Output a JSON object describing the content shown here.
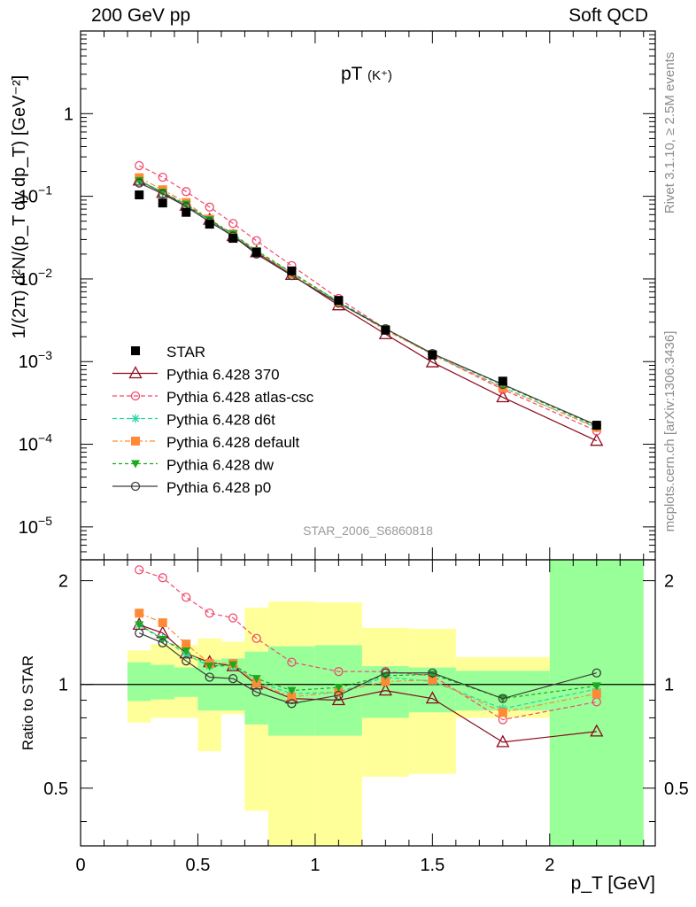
{
  "header": {
    "left": "200 GeV pp",
    "right": "Soft QCD"
  },
  "side_labels": {
    "rivet": "Rivet 3.1.10, ≥ 2.5M events",
    "mcplots": "mcplots.cern.ch [arXiv:1306.3436]"
  },
  "chart_data": [
    {
      "type": "scatter",
      "title_main": "pT",
      "title_sub": "(K⁺)",
      "watermark": "STAR_2006_S6860818",
      "ylabel": "1/(2π) d²N/(p_T dy dp_T) [GeV⁻²]",
      "yscale": "log",
      "ylim": [
        4e-06,
        10
      ],
      "xlim": [
        0,
        2.45
      ],
      "y_ticks": [
        1,
        0.1,
        0.01,
        0.001,
        0.0001,
        1e-05
      ],
      "y_tick_labels": [
        {
          "base": "1",
          "exp": ""
        },
        {
          "base": "10",
          "exp": "−1"
        },
        {
          "base": "10",
          "exp": "−2"
        },
        {
          "base": "10",
          "exp": "−3"
        },
        {
          "base": "10",
          "exp": "−4"
        },
        {
          "base": "10",
          "exp": "−5"
        }
      ],
      "legend_position": "lower-left",
      "data": {
        "name": "STAR",
        "color": "#000000",
        "x": [
          0.25,
          0.35,
          0.45,
          0.55,
          0.65,
          0.75,
          0.9,
          1.1,
          1.3,
          1.5,
          1.8,
          2.2
        ],
        "y": [
          0.104,
          0.083,
          0.064,
          0.046,
          0.031,
          0.021,
          0.0125,
          0.0055,
          0.0024,
          0.0012,
          0.00058,
          0.00017
        ]
      },
      "series": [
        {
          "name": "Pythia 6.428 370",
          "color": "#8b0a1e",
          "dash": "",
          "marker": "triangle-open",
          "x": [
            0.25,
            0.35,
            0.45,
            0.55,
            0.65,
            0.75,
            0.9,
            1.1,
            1.3,
            1.5,
            1.8,
            2.2
          ],
          "y": [
            0.155,
            0.11,
            0.077,
            0.052,
            0.033,
            0.021,
            0.0112,
            0.0048,
            0.00215,
            0.00098,
            0.00037,
            0.00011
          ]
        },
        {
          "name": "Pythia 6.428 atlas-csc",
          "color": "#f04a6e",
          "dash": "5,3",
          "marker": "circle-open",
          "x": [
            0.25,
            0.35,
            0.45,
            0.55,
            0.65,
            0.75,
            0.9,
            1.1,
            1.3,
            1.5,
            1.8,
            2.2
          ],
          "y": [
            0.235,
            0.17,
            0.114,
            0.074,
            0.047,
            0.029,
            0.0145,
            0.0058,
            0.0025,
            0.00122,
            0.00046,
            0.000145
          ]
        },
        {
          "name": "Pythia 6.428 d6t",
          "color": "#2ad4a6",
          "dash": "5,3",
          "marker": "star",
          "x": [
            0.25,
            0.35,
            0.45,
            0.55,
            0.65,
            0.75,
            0.9,
            1.1,
            1.3,
            1.5,
            1.8,
            2.2
          ],
          "y": [
            0.155,
            0.113,
            0.078,
            0.051,
            0.034,
            0.0215,
            0.0118,
            0.0053,
            0.0025,
            0.00122,
            0.00049,
            0.000158
          ]
        },
        {
          "name": "Pythia 6.428 default",
          "color": "#ff8a36",
          "dash": "6,3,2,3",
          "marker": "square",
          "x": [
            0.25,
            0.35,
            0.45,
            0.55,
            0.65,
            0.75,
            0.9,
            1.1,
            1.3,
            1.5,
            1.8,
            2.2
          ],
          "y": [
            0.168,
            0.12,
            0.084,
            0.053,
            0.035,
            0.0215,
            0.0115,
            0.0052,
            0.0024,
            0.00122,
            0.00048,
            0.00016
          ]
        },
        {
          "name": "Pythia 6.428 dw",
          "color": "#1ea81e",
          "dash": "4,3",
          "marker": "triangle-down",
          "x": [
            0.25,
            0.35,
            0.45,
            0.55,
            0.65,
            0.75,
            0.9,
            1.1,
            1.3,
            1.5,
            1.8,
            2.2
          ],
          "y": [
            0.155,
            0.112,
            0.08,
            0.052,
            0.035,
            0.022,
            0.012,
            0.0053,
            0.0025,
            0.00125,
            0.00052,
            0.000165
          ]
        },
        {
          "name": "Pythia 6.428 p0",
          "color": "#3c3c3c",
          "dash": "",
          "marker": "circle-open",
          "x": [
            0.25,
            0.35,
            0.45,
            0.55,
            0.65,
            0.75,
            0.9,
            1.1,
            1.3,
            1.5,
            1.8,
            2.2
          ],
          "y": [
            0.145,
            0.107,
            0.075,
            0.049,
            0.033,
            0.02,
            0.011,
            0.0051,
            0.0025,
            0.00125,
            0.00053,
            0.00017
          ]
        }
      ]
    },
    {
      "type": "scatter",
      "xlabel": "p_T [GeV]",
      "ylabel": "Ratio to STAR",
      "ylim": [
        0.34,
        2.3
      ],
      "y_ticks": [
        0.5,
        1,
        2
      ],
      "y_tick_labels": [
        "0.5",
        "1",
        "2"
      ],
      "x_ticks": [
        0,
        0.5,
        1,
        1.5,
        2
      ],
      "x_tick_labels": [
        "0",
        "0.5",
        "1",
        "1.5",
        "2"
      ],
      "bands": {
        "edges": [
          0.2,
          0.3,
          0.4,
          0.5,
          0.6,
          0.7,
          0.8,
          1.0,
          1.2,
          1.4,
          1.6,
          2.0,
          2.4
        ],
        "inner_color": "#99ff99",
        "outer_color": "#ffff99",
        "inner": [
          [
            0.895,
            1.16
          ],
          [
            0.905,
            1.14
          ],
          [
            0.92,
            1.12
          ],
          [
            0.84,
            1.18
          ],
          [
            0.84,
            1.19
          ],
          [
            0.765,
            1.245
          ],
          [
            0.71,
            1.29
          ],
          [
            0.71,
            1.3
          ],
          [
            0.8,
            1.13
          ],
          [
            0.83,
            1.12
          ],
          [
            0.84,
            1.095
          ],
          [
            0.34,
            2.3
          ]
        ],
        "outer": [
          [
            0.775,
            1.255
          ],
          [
            0.8,
            1.31
          ],
          [
            0.8,
            1.3
          ],
          [
            0.64,
            1.36
          ],
          [
            0.82,
            1.33
          ],
          [
            0.43,
            1.67
          ],
          [
            0.34,
            1.74
          ],
          [
            0.34,
            1.73
          ],
          [
            0.54,
            1.46
          ],
          [
            0.55,
            1.45
          ],
          [
            0.8,
            1.2
          ],
          [
            0.34,
            2.3
          ]
        ]
      },
      "reference_line": 1,
      "series": [
        {
          "name": "Pythia 6.428 370",
          "color": "#8b0a1e",
          "dash": "",
          "marker": "triangle-open",
          "x": [
            0.25,
            0.35,
            0.45,
            0.55,
            0.65,
            0.75,
            0.9,
            1.1,
            1.3,
            1.5,
            1.8,
            2.2
          ],
          "y": [
            1.49,
            1.41,
            1.23,
            1.16,
            1.13,
            1.0,
            0.91,
            0.9,
            0.96,
            0.91,
            0.68,
            0.73
          ]
        },
        {
          "name": "Pythia 6.428 atlas-csc",
          "color": "#f04a6e",
          "dash": "5,3",
          "marker": "circle-open",
          "x": [
            0.25,
            0.35,
            0.45,
            0.55,
            0.65,
            0.75,
            0.9,
            1.1,
            1.3,
            1.5,
            1.8,
            2.2
          ],
          "y": [
            2.15,
            2.04,
            1.79,
            1.61,
            1.56,
            1.36,
            1.16,
            1.09,
            1.09,
            1.06,
            0.79,
            0.89
          ]
        },
        {
          "name": "Pythia 6.428 d6t",
          "color": "#2ad4a6",
          "dash": "5,3",
          "marker": "star",
          "x": [
            0.25,
            0.35,
            0.45,
            0.55,
            0.65,
            0.75,
            0.9,
            1.1,
            1.3,
            1.5,
            1.8,
            2.2
          ],
          "y": [
            1.49,
            1.36,
            1.22,
            1.13,
            1.13,
            1.02,
            0.94,
            0.95,
            1.05,
            1.02,
            0.85,
            0.97
          ]
        },
        {
          "name": "Pythia 6.428 default",
          "color": "#ff8a36",
          "dash": "6,3,2,3",
          "marker": "square",
          "x": [
            0.25,
            0.35,
            0.45,
            0.55,
            0.65,
            0.75,
            0.9,
            1.1,
            1.3,
            1.5,
            1.8,
            2.2
          ],
          "y": [
            1.61,
            1.51,
            1.31,
            1.15,
            1.15,
            1.01,
            0.92,
            0.95,
            1.02,
            1.03,
            0.83,
            0.94
          ]
        },
        {
          "name": "Pythia 6.428 dw",
          "color": "#1ea81e",
          "dash": "4,3",
          "marker": "triangle-down",
          "x": [
            0.25,
            0.35,
            0.45,
            0.55,
            0.65,
            0.75,
            0.9,
            1.1,
            1.3,
            1.5,
            1.8,
            2.2
          ],
          "y": [
            1.49,
            1.35,
            1.25,
            1.13,
            1.14,
            1.04,
            0.96,
            0.98,
            1.06,
            1.07,
            0.91,
            0.99
          ]
        },
        {
          "name": "Pythia 6.428 p0",
          "color": "#3c3c3c",
          "dash": "",
          "marker": "circle-open",
          "x": [
            0.25,
            0.35,
            0.45,
            0.55,
            0.65,
            0.75,
            0.9,
            1.1,
            1.3,
            1.5,
            1.8,
            2.2
          ],
          "y": [
            1.41,
            1.32,
            1.17,
            1.05,
            1.04,
            0.95,
            0.88,
            0.93,
            1.08,
            1.08,
            0.91,
            1.08
          ]
        }
      ]
    }
  ]
}
